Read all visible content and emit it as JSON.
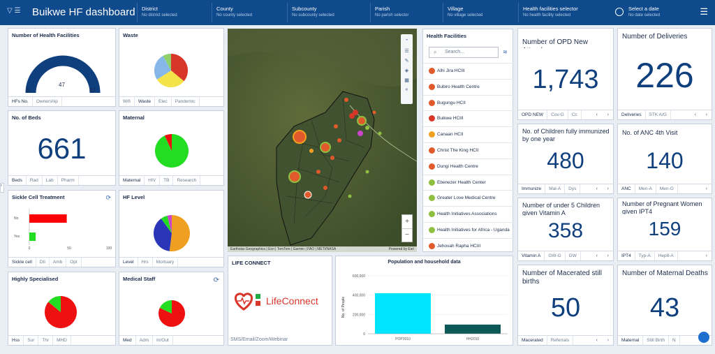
{
  "header": {
    "title": "Buikwe HF dashboard",
    "selectors": [
      {
        "label": "District",
        "sub": "No district selected"
      },
      {
        "label": "County",
        "sub": "No county selected"
      },
      {
        "label": "Subcounty",
        "sub": "No subcounty selected"
      },
      {
        "label": "Parish",
        "sub": "No parish selector"
      },
      {
        "label": "Village",
        "sub": "No village selected"
      },
      {
        "label": "Health facilities selector",
        "sub": "No health facility selected"
      },
      {
        "label": "Select a date",
        "sub": "No date selected"
      }
    ]
  },
  "hf_count": {
    "title": "Number of Health Facilities",
    "value": "47",
    "min": "0",
    "max": "47",
    "tabs": [
      "HFs No.",
      "Ownership"
    ]
  },
  "waste": {
    "title": "Waste",
    "tabs": [
      "Wifi",
      "Waste",
      "Elec",
      "Pandemic"
    ]
  },
  "beds": {
    "title": "No. of Beds",
    "value": "661",
    "tabs": [
      "Beds",
      "Rad",
      "Lab",
      "Pharm"
    ]
  },
  "maternal": {
    "title": "Maternal",
    "tabs": [
      "Maternal",
      "HIV",
      "TB",
      "Research"
    ]
  },
  "sickle": {
    "title": "Sickle Cell Treatment",
    "tabs": [
      "Sickle cell",
      "Dti",
      "Amb",
      "Opt"
    ]
  },
  "hf_level": {
    "title": "HF Level",
    "tabs": [
      "Level",
      "Hrs",
      "Mortuary"
    ]
  },
  "specialised": {
    "title": "Highly Specialised",
    "tabs": [
      "Hss",
      "Sur",
      "Thr",
      "MHD"
    ]
  },
  "staff": {
    "title": "Medical Staff",
    "tabs": [
      "Med",
      "Adm",
      "In/Out"
    ]
  },
  "map": {
    "attribution": "Earthstar Geographics | Esri | TomTom | Garmin | FAO | METI/NASA",
    "powered": "Powered by Esri",
    "zoom_in": "+",
    "zoom_out": "−"
  },
  "facilities": {
    "title": "Health Facilities",
    "search_placeholder": "Search...",
    "items": [
      {
        "name": "Alhi Jira HCIII",
        "color": "#e05a2b"
      },
      {
        "name": "Bubiro Health Centre",
        "color": "#e05a2b"
      },
      {
        "name": "Bugungu HCII",
        "color": "#e05a2b"
      },
      {
        "name": "Buikwe HCIII",
        "color": "#d9362a"
      },
      {
        "name": "Canaan HCII",
        "color": "#f0a020"
      },
      {
        "name": "Christ The King HCII",
        "color": "#e05a2b"
      },
      {
        "name": "Dungi Health Centre",
        "color": "#e05a2b"
      },
      {
        "name": "Ebenezer Health Center",
        "color": "#8fbf40"
      },
      {
        "name": "Greater Love Medical Centre",
        "color": "#8fbf40"
      },
      {
        "name": "Health Initiatives Associations",
        "color": "#8fbf40"
      },
      {
        "name": "Health Initiatives for Africa - Uganda",
        "color": "#8fbf40"
      },
      {
        "name": "Jehovah Rapha HCIII",
        "color": "#e05a2b"
      }
    ]
  },
  "life_connect": {
    "title": "LIFE CONNECT",
    "logo_text": "LifeConnect",
    "footer": "SMS/Email/Zoom/Webinar"
  },
  "population": {
    "title": "Population and household data"
  },
  "opd": {
    "title": "Number of OPD New Attendances",
    "value": "1,743",
    "tabs": [
      "OPD NEW",
      "Cov-G",
      "Cc"
    ]
  },
  "deliveries": {
    "title": "Number of Deliveries",
    "value": "226",
    "tabs": [
      "Deliveries",
      "STK A/G"
    ]
  },
  "immunized": {
    "title": "No. of Children fully immunized by one year",
    "value": "480",
    "tabs": [
      "Immunize",
      "Mal-A",
      "Dys"
    ]
  },
  "anc": {
    "title": "No. of ANC 4th Visit",
    "value": "140",
    "tabs": [
      "ANC",
      "Men-A",
      "Men-G"
    ]
  },
  "under5": {
    "title": "Number of under 5 Children given Vitamin A",
    "value": "358",
    "tabs": [
      "Vitamin A",
      "GW-G",
      "GW"
    ]
  },
  "pregnant": {
    "title": "Number of Pregnant Women given IPT4",
    "value": "159",
    "tabs": [
      "IPT4",
      "Typ-A",
      "Hep8-A"
    ]
  },
  "macerated": {
    "title": "Number of Macerated still births",
    "value": "50",
    "tabs": [
      "Macerated",
      "Referrals"
    ]
  },
  "mat_deaths": {
    "title": "Number of Maternal Deaths",
    "value": "43",
    "tabs": [
      "Maternal",
      "Still Birth",
      "N"
    ]
  },
  "colors": {
    "accent": "#0f4a8c",
    "number": "#0f3f7c"
  },
  "chart_data": [
    {
      "type": "pie",
      "title": "Waste",
      "slices": [
        {
          "color": "#d9362a",
          "value": 36
        },
        {
          "color": "#f3e24a",
          "value": 30
        },
        {
          "color": "#86b7e8",
          "value": 26
        },
        {
          "color": "#8fd06a",
          "value": 8
        }
      ]
    },
    {
      "type": "pie",
      "title": "Maternal",
      "slices": [
        {
          "color": "#22dd22",
          "value": 93
        },
        {
          "color": "#ee1111",
          "value": 7
        }
      ]
    },
    {
      "type": "bar",
      "title": "Sickle Cell Treatment",
      "orientation": "horizontal",
      "categories": [
        "No",
        "Yes"
      ],
      "values": [
        47,
        8
      ],
      "xlim": [
        0,
        100
      ],
      "xticks": [
        "0",
        "50",
        "100"
      ]
    },
    {
      "type": "pie",
      "title": "HF Level",
      "slices": [
        {
          "color": "#f0a020",
          "value": 52
        },
        {
          "color": "#2a35b8",
          "value": 38
        },
        {
          "color": "#22dd22",
          "value": 6
        },
        {
          "color": "#cc44cc",
          "value": 4
        }
      ]
    },
    {
      "type": "pie",
      "title": "Highly Specialised",
      "slices": [
        {
          "color": "#ee1111",
          "value": 86
        },
        {
          "color": "#22dd22",
          "value": 14
        }
      ]
    },
    {
      "type": "pie",
      "title": "Medical Staff",
      "slices": [
        {
          "color": "#ee1111",
          "value": 82
        },
        {
          "color": "#22dd22",
          "value": 18
        }
      ]
    },
    {
      "type": "bar",
      "title": "Population and household data",
      "ylabel": "No. of People",
      "categories": [
        "POP2010",
        "HH2010"
      ],
      "values": [
        420000,
        95000
      ],
      "ylim": [
        0,
        600000
      ],
      "yticks": [
        "0",
        "200,000",
        "400,000",
        "600,000"
      ],
      "colors": [
        "#00e5ff",
        "#0d5957"
      ]
    }
  ]
}
